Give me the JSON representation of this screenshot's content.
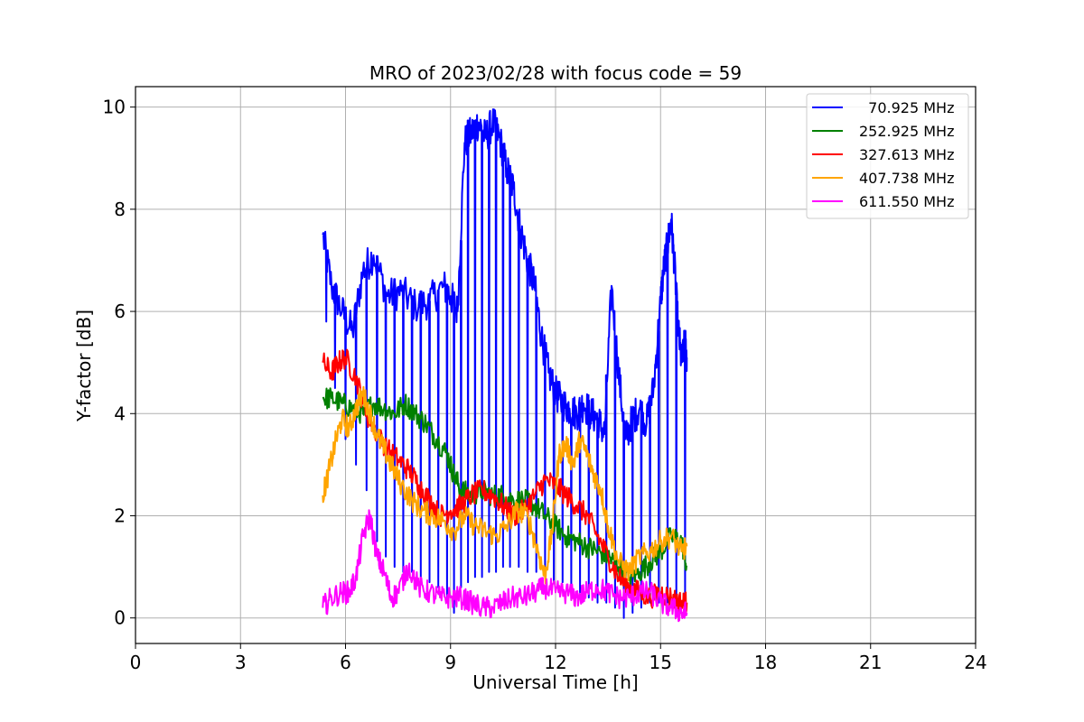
{
  "chart_data": {
    "type": "line",
    "title": "MRO of 2023/02/28 with focus code = 59",
    "xlabel": "Universal Time [h]",
    "ylabel": "Y-factor [dB]",
    "xlim": [
      0,
      24
    ],
    "ylim": [
      -0.5,
      10.4
    ],
    "xticks": [
      0,
      3,
      6,
      9,
      12,
      15,
      18,
      21,
      24
    ],
    "yticks": [
      0,
      2,
      4,
      6,
      8,
      10
    ],
    "grid": true,
    "legend_position": "top-right",
    "series": [
      {
        "name": "  70.925 MHz",
        "color": "#0000ff",
        "jagged": true,
        "x": [
          5.35,
          5.6,
          5.9,
          6.2,
          6.5,
          6.8,
          7.2,
          7.6,
          8.0,
          8.4,
          8.8,
          9.0,
          9.2,
          9.4,
          9.6,
          9.8,
          10.0,
          10.2,
          10.4,
          10.6,
          10.8,
          11.0,
          11.2,
          11.4,
          11.6,
          11.8,
          12.0,
          12.2,
          12.4,
          12.6,
          12.8,
          13.0,
          13.2,
          13.4,
          13.6,
          13.8,
          14.0,
          14.2,
          14.4,
          14.6,
          14.8,
          15.0,
          15.1,
          15.2,
          15.3,
          15.4,
          15.5,
          15.6,
          15.7,
          15.75
        ],
        "y": [
          7.5,
          6.5,
          6.0,
          5.6,
          6.8,
          7.1,
          6.3,
          6.4,
          6.1,
          6.2,
          6.5,
          6.3,
          6.0,
          9.3,
          9.5,
          9.7,
          9.4,
          9.7,
          9.4,
          8.8,
          8.4,
          7.6,
          7.0,
          6.5,
          5.5,
          4.8,
          4.4,
          4.2,
          4.1,
          4.0,
          4.2,
          4.0,
          3.9,
          3.6,
          6.5,
          4.8,
          3.5,
          3.9,
          4.1,
          3.8,
          4.5,
          6.2,
          6.9,
          7.3,
          7.8,
          6.9,
          5.7,
          5.0,
          5.4,
          5.1
        ],
        "dips": [
          [
            5.45,
            5.8
          ],
          [
            5.7,
            4.5
          ],
          [
            6.0,
            3.5
          ],
          [
            6.3,
            3.0
          ],
          [
            6.6,
            2.5
          ],
          [
            6.9,
            1.5
          ],
          [
            7.15,
            1.2
          ],
          [
            7.4,
            1.0
          ],
          [
            7.65,
            0.9
          ],
          [
            7.9,
            0.9
          ],
          [
            8.15,
            0.8
          ],
          [
            8.4,
            0.7
          ],
          [
            8.65,
            0.6
          ],
          [
            8.9,
            0.4
          ],
          [
            9.1,
            0.1
          ],
          [
            9.3,
            0.6
          ],
          [
            9.5,
            0.7
          ],
          [
            9.7,
            0.8
          ],
          [
            9.9,
            0.8
          ],
          [
            10.1,
            0.9
          ],
          [
            10.3,
            0.9
          ],
          [
            10.5,
            1.0
          ],
          [
            10.7,
            1.0
          ],
          [
            10.95,
            1.0
          ],
          [
            11.2,
            0.9
          ],
          [
            11.45,
            0.9
          ],
          [
            11.7,
            0.8
          ],
          [
            11.95,
            0.7
          ],
          [
            12.2,
            0.7
          ],
          [
            12.45,
            0.6
          ],
          [
            12.7,
            0.5
          ],
          [
            12.95,
            0.4
          ],
          [
            13.2,
            0.3
          ],
          [
            13.45,
            0.3
          ],
          [
            13.7,
            0.2
          ],
          [
            13.95,
            0.0
          ],
          [
            14.2,
            0.1
          ],
          [
            14.45,
            0.2
          ],
          [
            14.7,
            0.3
          ],
          [
            14.95,
            0.3
          ],
          [
            15.2,
            0.3
          ],
          [
            15.45,
            0.3
          ],
          [
            15.7,
            0.4
          ]
        ]
      },
      {
        "name": "252.925 MHz",
        "color": "#008000",
        "jagged": true,
        "x": [
          5.35,
          5.6,
          5.9,
          6.2,
          6.5,
          6.8,
          7.1,
          7.4,
          7.7,
          8.0,
          8.3,
          8.6,
          8.9,
          9.1,
          9.3,
          9.6,
          9.9,
          10.2,
          10.5,
          10.8,
          11.1,
          11.4,
          11.7,
          12.0,
          12.3,
          12.6,
          12.9,
          13.2,
          13.5,
          13.8,
          14.1,
          14.4,
          14.7,
          15.0,
          15.3,
          15.6,
          15.75
        ],
        "y": [
          4.3,
          4.3,
          4.2,
          4.1,
          4.0,
          4.2,
          4.1,
          4.0,
          4.2,
          4.0,
          3.8,
          3.5,
          3.2,
          2.8,
          2.5,
          2.4,
          2.5,
          2.4,
          2.4,
          2.3,
          2.3,
          2.2,
          2.0,
          1.8,
          1.6,
          1.5,
          1.4,
          1.3,
          1.2,
          1.0,
          0.8,
          0.9,
          1.1,
          1.3,
          1.6,
          1.5,
          1.0
        ]
      },
      {
        "name": "327.613 MHz",
        "color": "#ff0000",
        "jagged": true,
        "x": [
          5.35,
          5.6,
          5.8,
          6.0,
          6.3,
          6.6,
          6.9,
          7.2,
          7.5,
          7.8,
          8.1,
          8.4,
          8.7,
          9.0,
          9.3,
          9.6,
          9.9,
          10.2,
          10.5,
          10.8,
          11.1,
          11.4,
          11.7,
          12.0,
          12.3,
          12.6,
          12.9,
          13.2,
          13.5,
          13.8,
          14.1,
          14.4,
          14.7,
          15.0,
          15.3,
          15.6,
          15.75
        ],
        "y": [
          5.0,
          4.8,
          5.0,
          5.1,
          4.7,
          4.0,
          3.6,
          3.3,
          3.1,
          2.9,
          2.6,
          2.3,
          2.0,
          2.1,
          2.2,
          2.4,
          2.5,
          2.4,
          2.2,
          2.0,
          2.1,
          2.4,
          2.7,
          2.6,
          2.4,
          2.2,
          2.0,
          1.6,
          1.2,
          0.8,
          0.6,
          0.5,
          0.4,
          0.5,
          0.4,
          0.3,
          0.3
        ]
      },
      {
        "name": "407.738 MHz",
        "color": "#ffa500",
        "jagged": true,
        "x": [
          5.35,
          5.5,
          5.7,
          5.9,
          6.1,
          6.3,
          6.5,
          6.7,
          6.9,
          7.1,
          7.3,
          7.6,
          7.9,
          8.2,
          8.5,
          8.8,
          9.1,
          9.4,
          9.7,
          10.0,
          10.3,
          10.6,
          10.9,
          11.2,
          11.5,
          11.7,
          11.9,
          12.1,
          12.3,
          12.5,
          12.7,
          12.9,
          13.1,
          13.3,
          13.5,
          13.8,
          14.1,
          14.4,
          14.7,
          15.0,
          15.3,
          15.6,
          15.75
        ],
        "y": [
          2.4,
          2.8,
          3.4,
          3.9,
          3.7,
          4.1,
          4.4,
          4.0,
          3.6,
          3.3,
          3.0,
          2.6,
          2.3,
          2.1,
          2.0,
          1.9,
          1.7,
          2.0,
          1.8,
          1.7,
          1.6,
          1.8,
          2.1,
          2.0,
          1.3,
          0.8,
          1.7,
          3.2,
          3.4,
          3.0,
          3.5,
          3.2,
          2.8,
          2.5,
          1.8,
          1.1,
          0.9,
          1.2,
          1.3,
          1.5,
          1.6,
          1.3,
          1.4
        ]
      },
      {
        "name": "611.550 MHz",
        "color": "#ff00ff",
        "jagged": true,
        "x": [
          5.35,
          5.6,
          5.9,
          6.1,
          6.3,
          6.5,
          6.7,
          6.9,
          7.1,
          7.3,
          7.5,
          7.8,
          8.1,
          8.4,
          8.7,
          9.0,
          9.3,
          9.6,
          9.9,
          10.2,
          10.5,
          10.8,
          11.1,
          11.4,
          11.7,
          12.0,
          12.3,
          12.6,
          12.9,
          13.2,
          13.5,
          13.8,
          14.1,
          14.4,
          14.7,
          15.0,
          15.3,
          15.6,
          15.75
        ],
        "y": [
          0.2,
          0.4,
          0.5,
          0.5,
          0.8,
          1.6,
          2.0,
          1.2,
          0.9,
          0.4,
          0.5,
          1.0,
          0.6,
          0.5,
          0.4,
          0.4,
          0.4,
          0.3,
          0.2,
          0.2,
          0.3,
          0.4,
          0.4,
          0.5,
          0.6,
          0.5,
          0.5,
          0.4,
          0.5,
          0.6,
          0.5,
          0.4,
          0.4,
          0.5,
          0.5,
          0.3,
          0.2,
          0.1,
          0.1
        ]
      }
    ]
  }
}
